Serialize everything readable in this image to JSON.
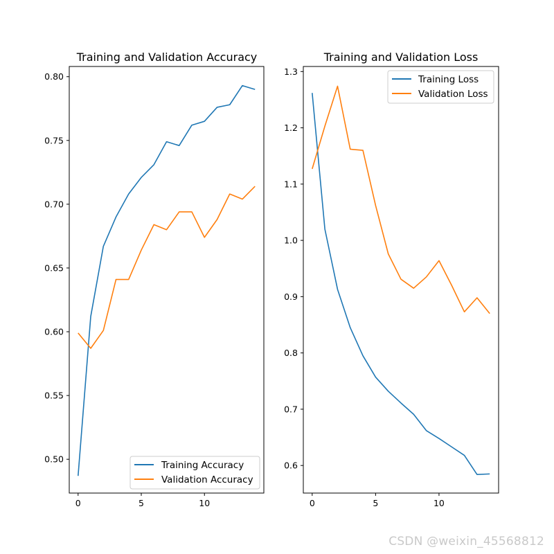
{
  "watermark": "CSDN @weixin_45568812",
  "colors": {
    "training": "#1f77b4",
    "validation": "#ff7f0e"
  },
  "chart_data": [
    {
      "type": "line",
      "title": "Training and Validation Accuracy",
      "xlabel": "",
      "ylabel": "",
      "x": [
        0,
        1,
        2,
        3,
        4,
        5,
        6,
        7,
        8,
        9,
        10,
        11,
        12,
        13,
        14
      ],
      "xlim": [
        -0.7,
        14.7
      ],
      "ylim": [
        0.4735,
        0.808
      ],
      "xticks": [
        0,
        5,
        10
      ],
      "yticks": [
        0.5,
        0.55,
        0.6,
        0.65,
        0.7,
        0.75,
        0.8
      ],
      "ytick_labels": [
        "0.50",
        "0.55",
        "0.60",
        "0.65",
        "0.70",
        "0.75",
        "0.80"
      ],
      "legend_loc": "lower right",
      "series": [
        {
          "name": "Training Accuracy",
          "color_key": "training",
          "values": [
            0.487,
            0.612,
            0.667,
            0.69,
            0.708,
            0.721,
            0.731,
            0.749,
            0.746,
            0.762,
            0.765,
            0.776,
            0.778,
            0.793,
            0.79
          ]
        },
        {
          "name": "Validation Accuracy",
          "color_key": "validation",
          "values": [
            0.599,
            0.587,
            0.601,
            0.641,
            0.641,
            0.664,
            0.684,
            0.68,
            0.694,
            0.694,
            0.674,
            0.688,
            0.708,
            0.704,
            0.714
          ]
        }
      ]
    },
    {
      "type": "line",
      "title": "Training and Validation Loss",
      "xlabel": "",
      "ylabel": "",
      "x": [
        0,
        1,
        2,
        3,
        4,
        5,
        6,
        7,
        8,
        9,
        10,
        11,
        12,
        13,
        14
      ],
      "xlim": [
        -0.7,
        14.7
      ],
      "ylim": [
        0.551,
        1.309
      ],
      "xticks": [
        0,
        5,
        10
      ],
      "yticks": [
        0.6,
        0.7,
        0.8,
        0.9,
        1.0,
        1.1,
        1.2,
        1.3
      ],
      "ytick_labels": [
        "0.6",
        "0.7",
        "0.8",
        "0.9",
        "1.0",
        "1.1",
        "1.2",
        "1.3"
      ],
      "legend_loc": "upper right",
      "series": [
        {
          "name": "Training Loss",
          "color_key": "training",
          "values": [
            1.262,
            1.02,
            0.913,
            0.845,
            0.795,
            0.757,
            0.732,
            0.711,
            0.691,
            0.662,
            0.648,
            0.633,
            0.618,
            0.584,
            0.585
          ]
        },
        {
          "name": "Validation Loss",
          "color_key": "validation",
          "values": [
            1.127,
            1.203,
            1.274,
            1.162,
            1.16,
            1.062,
            0.976,
            0.931,
            0.915,
            0.935,
            0.964,
            0.92,
            0.873,
            0.898,
            0.87
          ]
        }
      ]
    }
  ]
}
